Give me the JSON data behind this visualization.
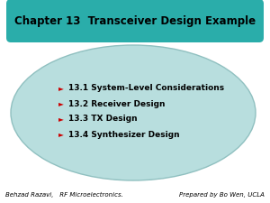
{
  "title": "Chapter 13  Transceiver Design Example",
  "title_bg_color": "#2aadaa",
  "title_text_color": "#000000",
  "ellipse_color": "#b8dede",
  "ellipse_edge_color": "#90c0c0",
  "bg_color": "#ffffff",
  "bullet_arrow_color": "#cc0000",
  "bullet_text_color": "#000000",
  "bullets": [
    "13.1 System-Level Considerations",
    "13.2 Receiver Design",
    "13.3 TX Design",
    "13.4 Synthesizer Design"
  ],
  "footer_left": "Behzad Razavi,   RF Microelectronics.",
  "footer_right": "Prepared by Bo Wen, UCLA",
  "footer_color": "#000000"
}
